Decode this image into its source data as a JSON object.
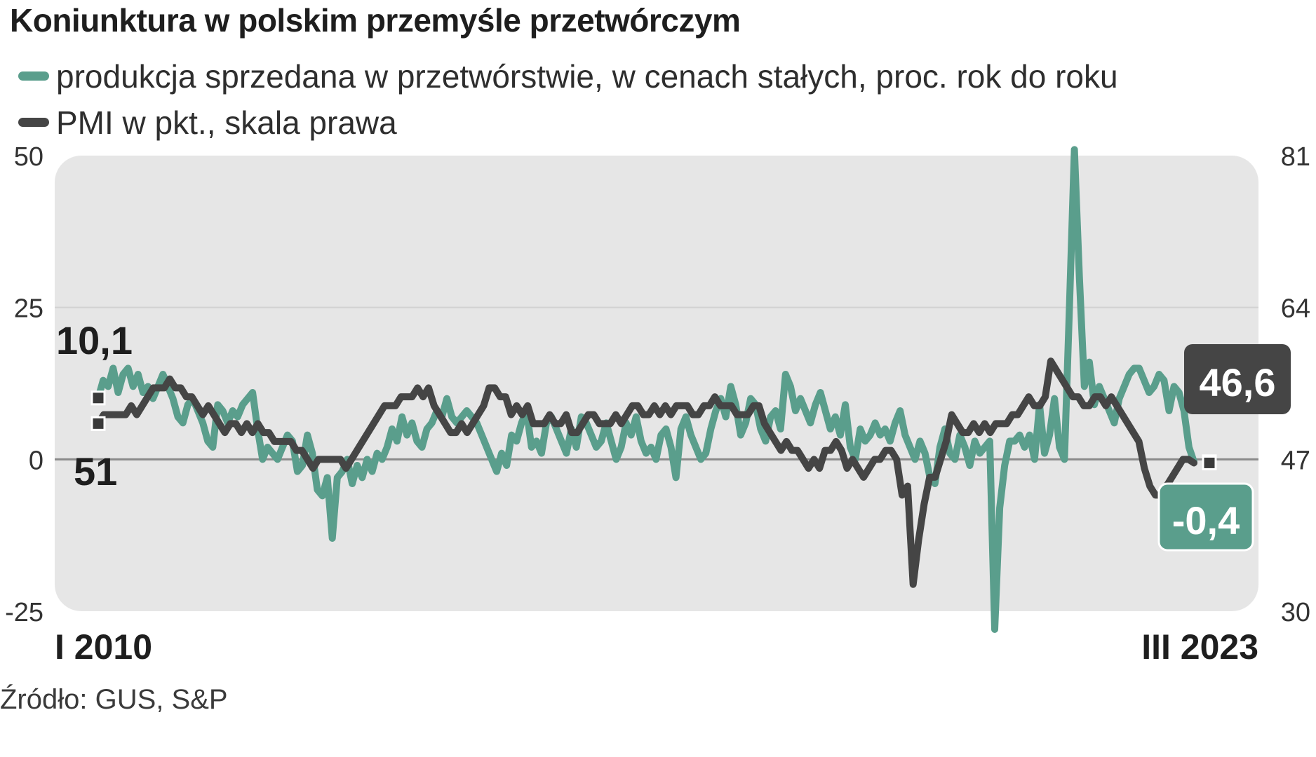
{
  "colors": {
    "production": "#5a9e8c",
    "pmi": "#454545",
    "plot_bg": "#e6e6e6"
  },
  "chart_data": {
    "type": "line",
    "title": "Koniunktura w polskim przemyśle przetwórczym",
    "source": "Źródło: GUS, S&P",
    "x_start_label": "I 2010",
    "x_end_label": "III 2023",
    "left_axis": {
      "ylim": [
        -25,
        50
      ],
      "ticks": [
        "50",
        "25",
        "0",
        "-25"
      ]
    },
    "right_axis": {
      "ylim": [
        30,
        81
      ],
      "ticks": [
        "81",
        "64",
        "47",
        "30"
      ]
    },
    "series": [
      {
        "name": "produkcja sprzedana w przetwórstwie, w cenach stałych, proc. rok do roku",
        "axis": "left",
        "first_label": "10,1",
        "last_label": "-0,4",
        "values": [
          10.1,
          13,
          12,
          15,
          11,
          14,
          15,
          12,
          14,
          11,
          12,
          10,
          12,
          14,
          12,
          10,
          7,
          6,
          9,
          10,
          8,
          6,
          3,
          2,
          9,
          8,
          6,
          8,
          7,
          9,
          10,
          11,
          5,
          0,
          2,
          1,
          0,
          2,
          4,
          3,
          -2,
          -1,
          4,
          1,
          -5,
          -6,
          -3,
          -13,
          -3,
          -2,
          0,
          -4,
          -1,
          -3,
          0,
          -2,
          1,
          0,
          2,
          5,
          3,
          7,
          4,
          6,
          3,
          2,
          5,
          6,
          8,
          7,
          10,
          7,
          6,
          7,
          8,
          7,
          6,
          4,
          2,
          0,
          -2,
          1,
          -1,
          4,
          3,
          6,
          8,
          2,
          3,
          1,
          6,
          7,
          5,
          3,
          1,
          5,
          2,
          7,
          6,
          4,
          2,
          3,
          6,
          3,
          0,
          2,
          6,
          4,
          7,
          3,
          1,
          2,
          0,
          4,
          5,
          2,
          -3,
          5,
          7,
          4,
          2,
          0,
          1,
          5,
          8,
          10,
          7,
          12,
          9,
          4,
          6,
          10,
          9,
          5,
          3,
          7,
          8,
          5,
          14,
          12,
          8,
          10,
          8,
          6,
          9,
          11,
          8,
          5,
          7,
          4,
          9,
          2,
          0,
          5,
          3,
          4,
          6,
          4,
          5,
          3,
          6,
          8,
          4,
          2,
          0,
          3,
          1,
          -3,
          -4,
          2,
          5,
          1,
          0,
          4,
          2,
          -1,
          3,
          1,
          2,
          3,
          -28,
          -8,
          -1,
          3,
          3,
          4,
          2,
          4,
          0,
          9,
          1,
          4,
          10,
          2,
          0,
          25,
          51,
          30,
          12,
          16,
          9,
          12,
          10,
          8,
          6,
          10,
          12,
          14,
          15,
          15,
          13,
          11,
          12,
          14,
          13,
          8,
          12,
          11,
          8,
          2,
          -0.4
        ]
      },
      {
        "name": "PMI w pkt., skala prawa",
        "axis": "right",
        "first_label": "51",
        "last_label": "46,6",
        "values": [
          51,
          52,
          52,
          52,
          52,
          52,
          53,
          52,
          53,
          54,
          55,
          55,
          55,
          56,
          55,
          55,
          54,
          54,
          53,
          52,
          53,
          52,
          51,
          50,
          51,
          51,
          50,
          51,
          50,
          51,
          50,
          50,
          49,
          49,
          49,
          49,
          48,
          48,
          47,
          46,
          47,
          47,
          47,
          47,
          47,
          46,
          47,
          48,
          49,
          50,
          51,
          52,
          53,
          53,
          53,
          54,
          54,
          54,
          55,
          54,
          55,
          53,
          52,
          51,
          50,
          50,
          51,
          50,
          51,
          52,
          53,
          55,
          55,
          54,
          54,
          52,
          53,
          52,
          53,
          51,
          51,
          51,
          52,
          51,
          51,
          52,
          50,
          50,
          51,
          52,
          52,
          51,
          51,
          51,
          52,
          51,
          52,
          53,
          53,
          52,
          52,
          53,
          52,
          53,
          52,
          53,
          53,
          53,
          52,
          52,
          53,
          53,
          54,
          53,
          53,
          53,
          52,
          52,
          52,
          53,
          53,
          51,
          50,
          49,
          48,
          49,
          48,
          48,
          47,
          46,
          47,
          46,
          48,
          48,
          49,
          48,
          46,
          47,
          46,
          45,
          46,
          47,
          47,
          48,
          48,
          47,
          43,
          44,
          33,
          38,
          42,
          45,
          45,
          47,
          49,
          52,
          51,
          50,
          50,
          51,
          50,
          51,
          50,
          51,
          51,
          51,
          52,
          52,
          53,
          54,
          53,
          53,
          54,
          58,
          57,
          56,
          55,
          54,
          54,
          53,
          53,
          54,
          54,
          53,
          54,
          53,
          52,
          51,
          50,
          49,
          46,
          44,
          43,
          43,
          44,
          45,
          46,
          47,
          47,
          46.6
        ]
      }
    ],
    "grid": true
  }
}
